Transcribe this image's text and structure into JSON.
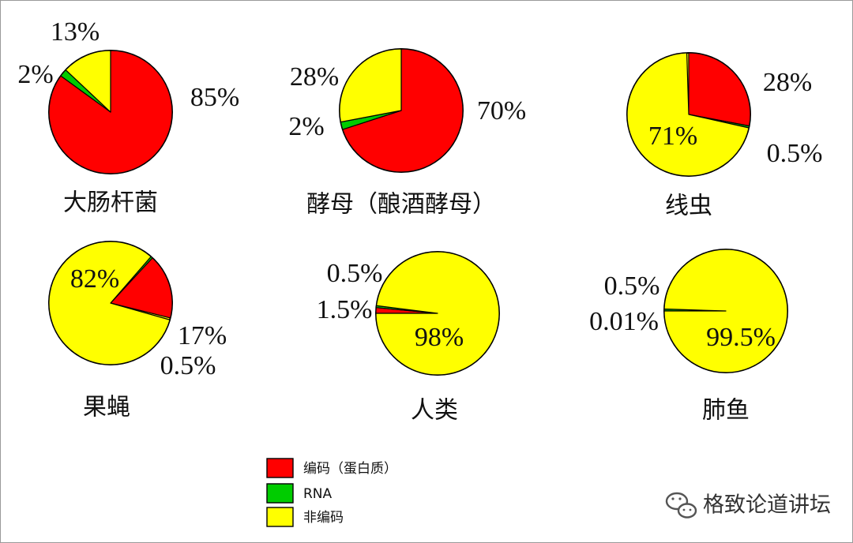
{
  "chart_data": {
    "type": "pie",
    "series_colors": {
      "coding": "#ff0000",
      "rna": "#00cc00",
      "noncoding": "#ffff00"
    },
    "charts": [
      {
        "title": "大肠杆菌",
        "slices": [
          {
            "key": "coding",
            "value": 85,
            "label": "85%"
          },
          {
            "key": "rna",
            "value": 2,
            "label": "2%"
          },
          {
            "key": "noncoding",
            "value": 13,
            "label": "13%"
          }
        ]
      },
      {
        "title": "酵母（酿酒酵母）",
        "slices": [
          {
            "key": "coding",
            "value": 70,
            "label": "70%"
          },
          {
            "key": "rna",
            "value": 2,
            "label": "2%"
          },
          {
            "key": "noncoding",
            "value": 28,
            "label": "28%"
          }
        ]
      },
      {
        "title": "线虫",
        "slices": [
          {
            "key": "coding",
            "value": 28,
            "label": "28%"
          },
          {
            "key": "rna",
            "value": 0.5,
            "label": "0.5%"
          },
          {
            "key": "noncoding",
            "value": 71,
            "label": "71%"
          }
        ]
      },
      {
        "title": "果蝇",
        "slices": [
          {
            "key": "coding",
            "value": 17,
            "label": "17%"
          },
          {
            "key": "rna",
            "value": 0.5,
            "label": "0.5%"
          },
          {
            "key": "noncoding",
            "value": 82,
            "label": "82%"
          }
        ]
      },
      {
        "title": "人类",
        "slices": [
          {
            "key": "coding",
            "value": 1.5,
            "label": "1.5%"
          },
          {
            "key": "rna",
            "value": 0.5,
            "label": "0.5%"
          },
          {
            "key": "noncoding",
            "value": 98,
            "label": "98%"
          }
        ]
      },
      {
        "title": "肺鱼",
        "slices": [
          {
            "key": "coding",
            "value": 0.01,
            "label": "0.01%"
          },
          {
            "key": "rna",
            "value": 0.5,
            "label": "0.5%"
          },
          {
            "key": "noncoding",
            "value": 99.5,
            "label": "99.5%"
          }
        ]
      }
    ],
    "legend": {
      "placement": "bottom-center",
      "entries": [
        {
          "key": "coding",
          "label": "编码（蛋白质）"
        },
        {
          "key": "rna",
          "label": "RNA"
        },
        {
          "key": "noncoding",
          "label": "非编码"
        }
      ]
    }
  },
  "watermark": {
    "text": "格致论道讲坛",
    "icon": "wechat-icon"
  }
}
